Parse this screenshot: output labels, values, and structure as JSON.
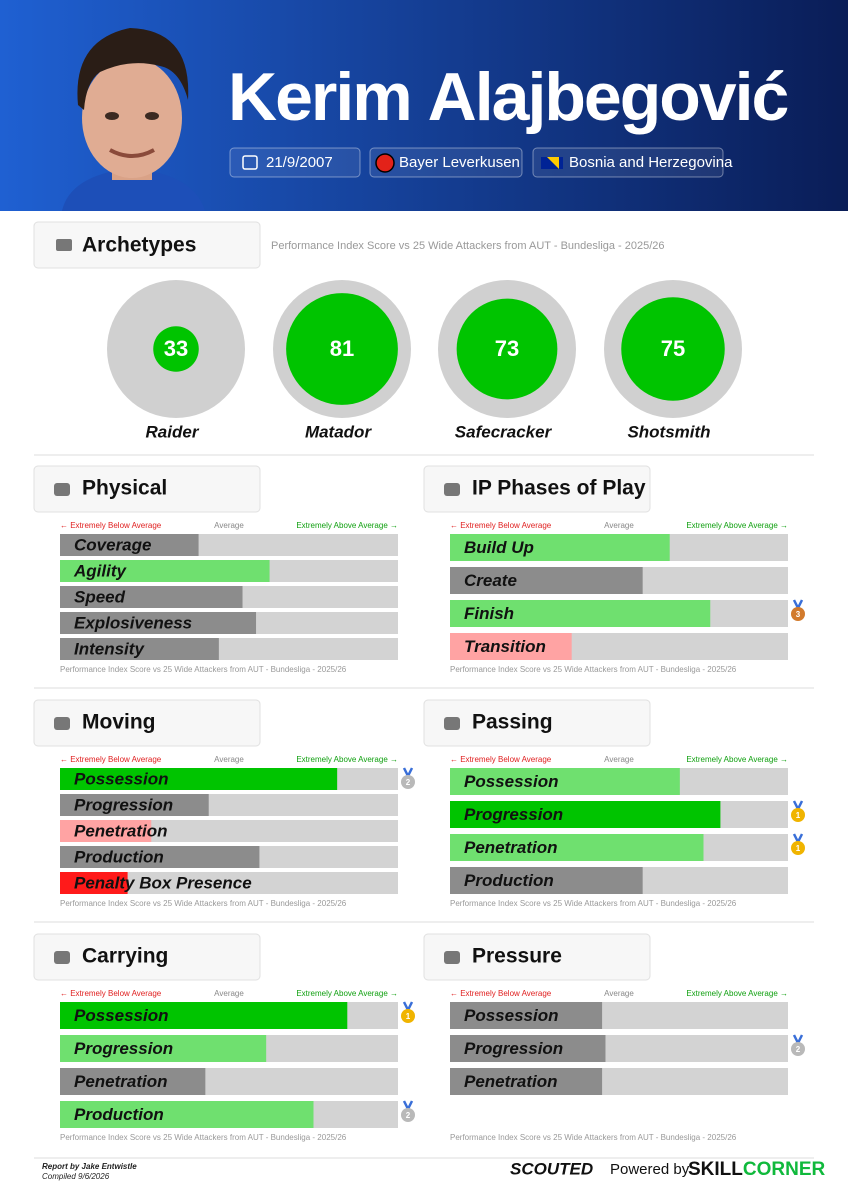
{
  "header": {
    "first_name": "Kerim",
    "last_name": "Alajbegović",
    "dob": "21/9/2007",
    "club": "Bayer Leverkusen",
    "nation": "Bosnia and Herzegovina"
  },
  "archetypes": {
    "title": "Archetypes",
    "subtitle": "Performance Index Score vs 25 Wide Attackers from AUT - Bundesliga - 2025/26",
    "items": [
      {
        "name": "Raider",
        "value": 33
      },
      {
        "name": "Matador",
        "value": 81
      },
      {
        "name": "Safecracker",
        "value": 73
      },
      {
        "name": "Shotsmith",
        "value": 75
      }
    ]
  },
  "sections": [
    {
      "title": "Physical",
      "legend_low": "← Extremely Below Average",
      "legend_mid": "Average",
      "legend_high": "Extremely Above Average →",
      "footnote": "Performance Index Score vs 25 Wide Attackers from AUT - Bundesliga - 2025/26",
      "metrics": [
        {
          "name": "Coverage",
          "value": 41,
          "color": "#8c8c8c"
        },
        {
          "name": "Agility",
          "value": 62,
          "color": "#6fe06f"
        },
        {
          "name": "Speed",
          "value": 54,
          "color": "#8c8c8c"
        },
        {
          "name": "Explosiveness",
          "value": 58,
          "color": "#8c8c8c"
        },
        {
          "name": "Intensity",
          "value": 47,
          "color": "#8c8c8c"
        }
      ]
    },
    {
      "title": "IP Phases of Play",
      "legend_low": "← Extremely Below Average",
      "legend_mid": "Average",
      "legend_high": "Extremely Above Average →",
      "footnote": "Performance Index Score vs 25 Wide Attackers from AUT - Bundesliga - 2025/26",
      "metrics": [
        {
          "name": "Build Up",
          "value": 65,
          "color": "#6fe06f"
        },
        {
          "name": "Create",
          "value": 57,
          "color": "#8c8c8c"
        },
        {
          "name": "Finish",
          "value": 77,
          "color": "#6fe06f",
          "medal": 3
        },
        {
          "name": "Transition",
          "value": 36,
          "color": "#ffa3a3"
        }
      ]
    },
    {
      "title": "Moving",
      "legend_low": "← Extremely Below Average",
      "legend_mid": "Average",
      "legend_high": "Extremely Above Average →",
      "footnote": "Performance Index Score vs 25 Wide Attackers from AUT - Bundesliga - 2025/26",
      "metrics": [
        {
          "name": "Possession",
          "value": 82,
          "color": "#00c400",
          "medal": 2
        },
        {
          "name": "Progression",
          "value": 44,
          "color": "#8c8c8c"
        },
        {
          "name": "Penetration",
          "value": 27,
          "color": "#ffa3a3"
        },
        {
          "name": "Production",
          "value": 59,
          "color": "#8c8c8c"
        },
        {
          "name": "Penalty Box Presence",
          "value": 20,
          "color": "#ff1a1a"
        }
      ]
    },
    {
      "title": "Passing",
      "legend_low": "← Extremely Below Average",
      "legend_mid": "Average",
      "legend_high": "Extremely Above Average →",
      "footnote": "Performance Index Score vs 25 Wide Attackers from AUT - Bundesliga - 2025/26",
      "metrics": [
        {
          "name": "Possession",
          "value": 68,
          "color": "#6fe06f"
        },
        {
          "name": "Progression",
          "value": 80,
          "color": "#00c400",
          "medal": 1
        },
        {
          "name": "Penetration",
          "value": 75,
          "color": "#6fe06f",
          "medal": 1
        },
        {
          "name": "Production",
          "value": 57,
          "color": "#8c8c8c"
        }
      ]
    },
    {
      "title": "Carrying",
      "legend_low": "← Extremely Below Average",
      "legend_mid": "Average",
      "legend_high": "Extremely Above Average →",
      "footnote": "Performance Index Score vs 25 Wide Attackers from AUT - Bundesliga - 2025/26",
      "metrics": [
        {
          "name": "Possession",
          "value": 85,
          "color": "#00c400",
          "medal": 1
        },
        {
          "name": "Progression",
          "value": 61,
          "color": "#6fe06f"
        },
        {
          "name": "Penetration",
          "value": 43,
          "color": "#8c8c8c"
        },
        {
          "name": "Production",
          "value": 75,
          "color": "#6fe06f",
          "medal": 2
        }
      ]
    },
    {
      "title": "Pressure",
      "legend_low": "← Extremely Below Average",
      "legend_mid": "Average",
      "legend_high": "Extremely Above Average →",
      "footnote": "Performance Index Score vs 25 Wide Attackers from AUT - Bundesliga - 2025/26",
      "metrics": [
        {
          "name": "Possession",
          "value": 45,
          "color": "#8c8c8c"
        },
        {
          "name": "Progression",
          "value": 46,
          "color": "#8c8c8c",
          "medal": 2
        },
        {
          "name": "Penetration",
          "value": 45,
          "color": "#8c8c8c"
        }
      ]
    }
  ],
  "footer": {
    "report_by": "Report by Jake Entwistle",
    "compiled": "Compiled 9/6/2026",
    "brand": "SCOUTED",
    "powered": "Powered by",
    "partner_a": "SKILL",
    "partner_b": "CORNER"
  }
}
